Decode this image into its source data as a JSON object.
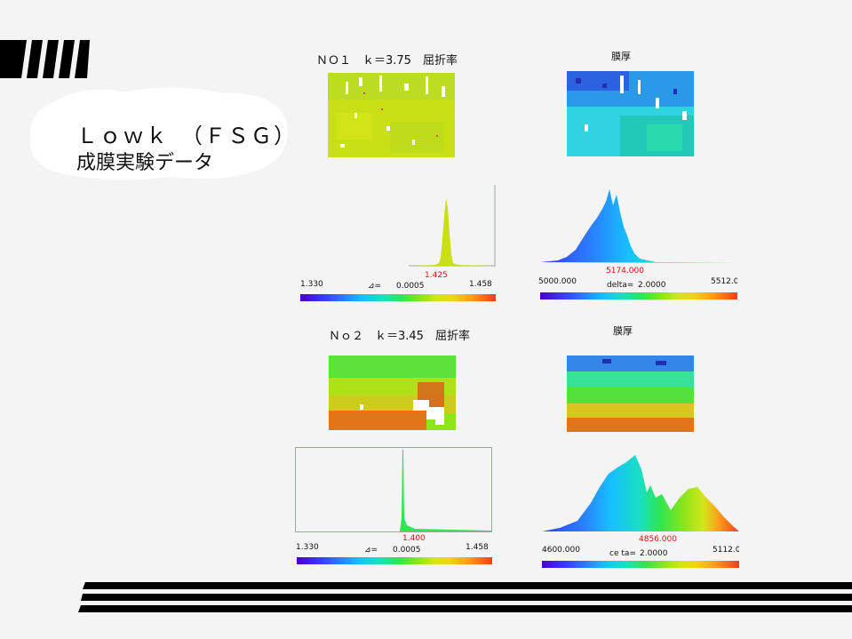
{
  "title": {
    "line1": "Ｌｏｗｋ　（ＦＳＧ）",
    "line2": "成膜実験データ"
  },
  "samples": [
    {
      "refr_title": "ＮＯ１　ｋ＝3.75　屈折率",
      "thick_title": "膜厚",
      "refr_hist": {
        "min": "1.330",
        "delta": "⊿=",
        "delta_val": "0.0005",
        "max": "1.458",
        "peak": "1.425"
      },
      "thick_hist": {
        "min": "5000.000",
        "delta": "delta=",
        "delta_val": "2.0000",
        "max": "5512.0",
        "peak": "5174.000"
      }
    },
    {
      "refr_title": "Ｎｏ２　ｋ＝3.45　屈折率",
      "thick_title": "膜厚",
      "refr_hist": {
        "min": "1.330",
        "delta": "⊿=",
        "delta_val": "0.0005",
        "max": "1.458",
        "peak": "1.400"
      },
      "thick_hist": {
        "min": "4600.000",
        "delta": "ce ta=",
        "delta_val": "2.0000",
        "max": "5112.0",
        "peak": "4856.000"
      }
    }
  ],
  "colors": {
    "accent_red": "#e01010",
    "background": "#f4f4f4",
    "stripes": "#000000"
  }
}
